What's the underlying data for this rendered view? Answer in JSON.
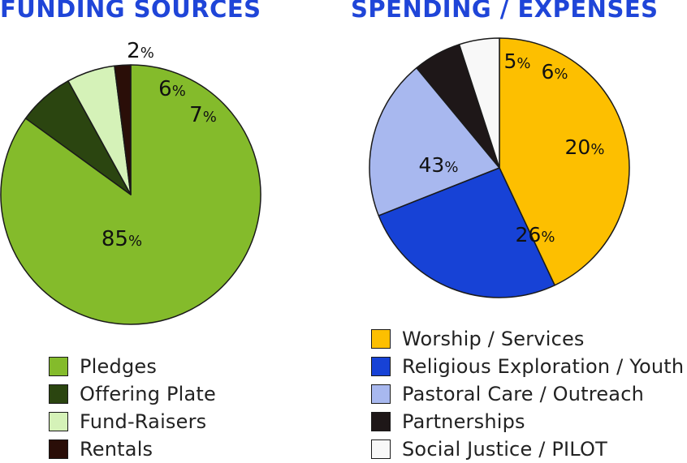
{
  "chart_data": [
    {
      "type": "pie",
      "title": "FUNDING SOURCES",
      "categories": [
        "Pledges",
        "Offering Plate",
        "Fund-Raisers",
        "Rentals"
      ],
      "values": [
        85,
        7,
        6,
        2
      ],
      "value_labels": [
        "85",
        "7",
        "6",
        "2"
      ],
      "unit": "%",
      "colors": [
        "#84bb2b",
        "#2b4510",
        "#d5f2b8",
        "#2a0e08"
      ],
      "legend": "bottom"
    },
    {
      "type": "pie",
      "title": "SPENDING / EXPENSES",
      "categories": [
        "Worship / Services",
        "Religious Exploration / Youth",
        "Pastoral Care / Outreach",
        "Partnerships",
        "Social Justice / PILOT"
      ],
      "values": [
        43,
        26,
        20,
        6,
        5
      ],
      "value_labels": [
        "43",
        "26",
        "20",
        "6",
        "5"
      ],
      "unit": "%",
      "colors": [
        "#fdbf00",
        "#1742d6",
        "#a8b8ef",
        "#1e1718",
        "#f8f8f8"
      ],
      "legend": "bottom"
    }
  ]
}
